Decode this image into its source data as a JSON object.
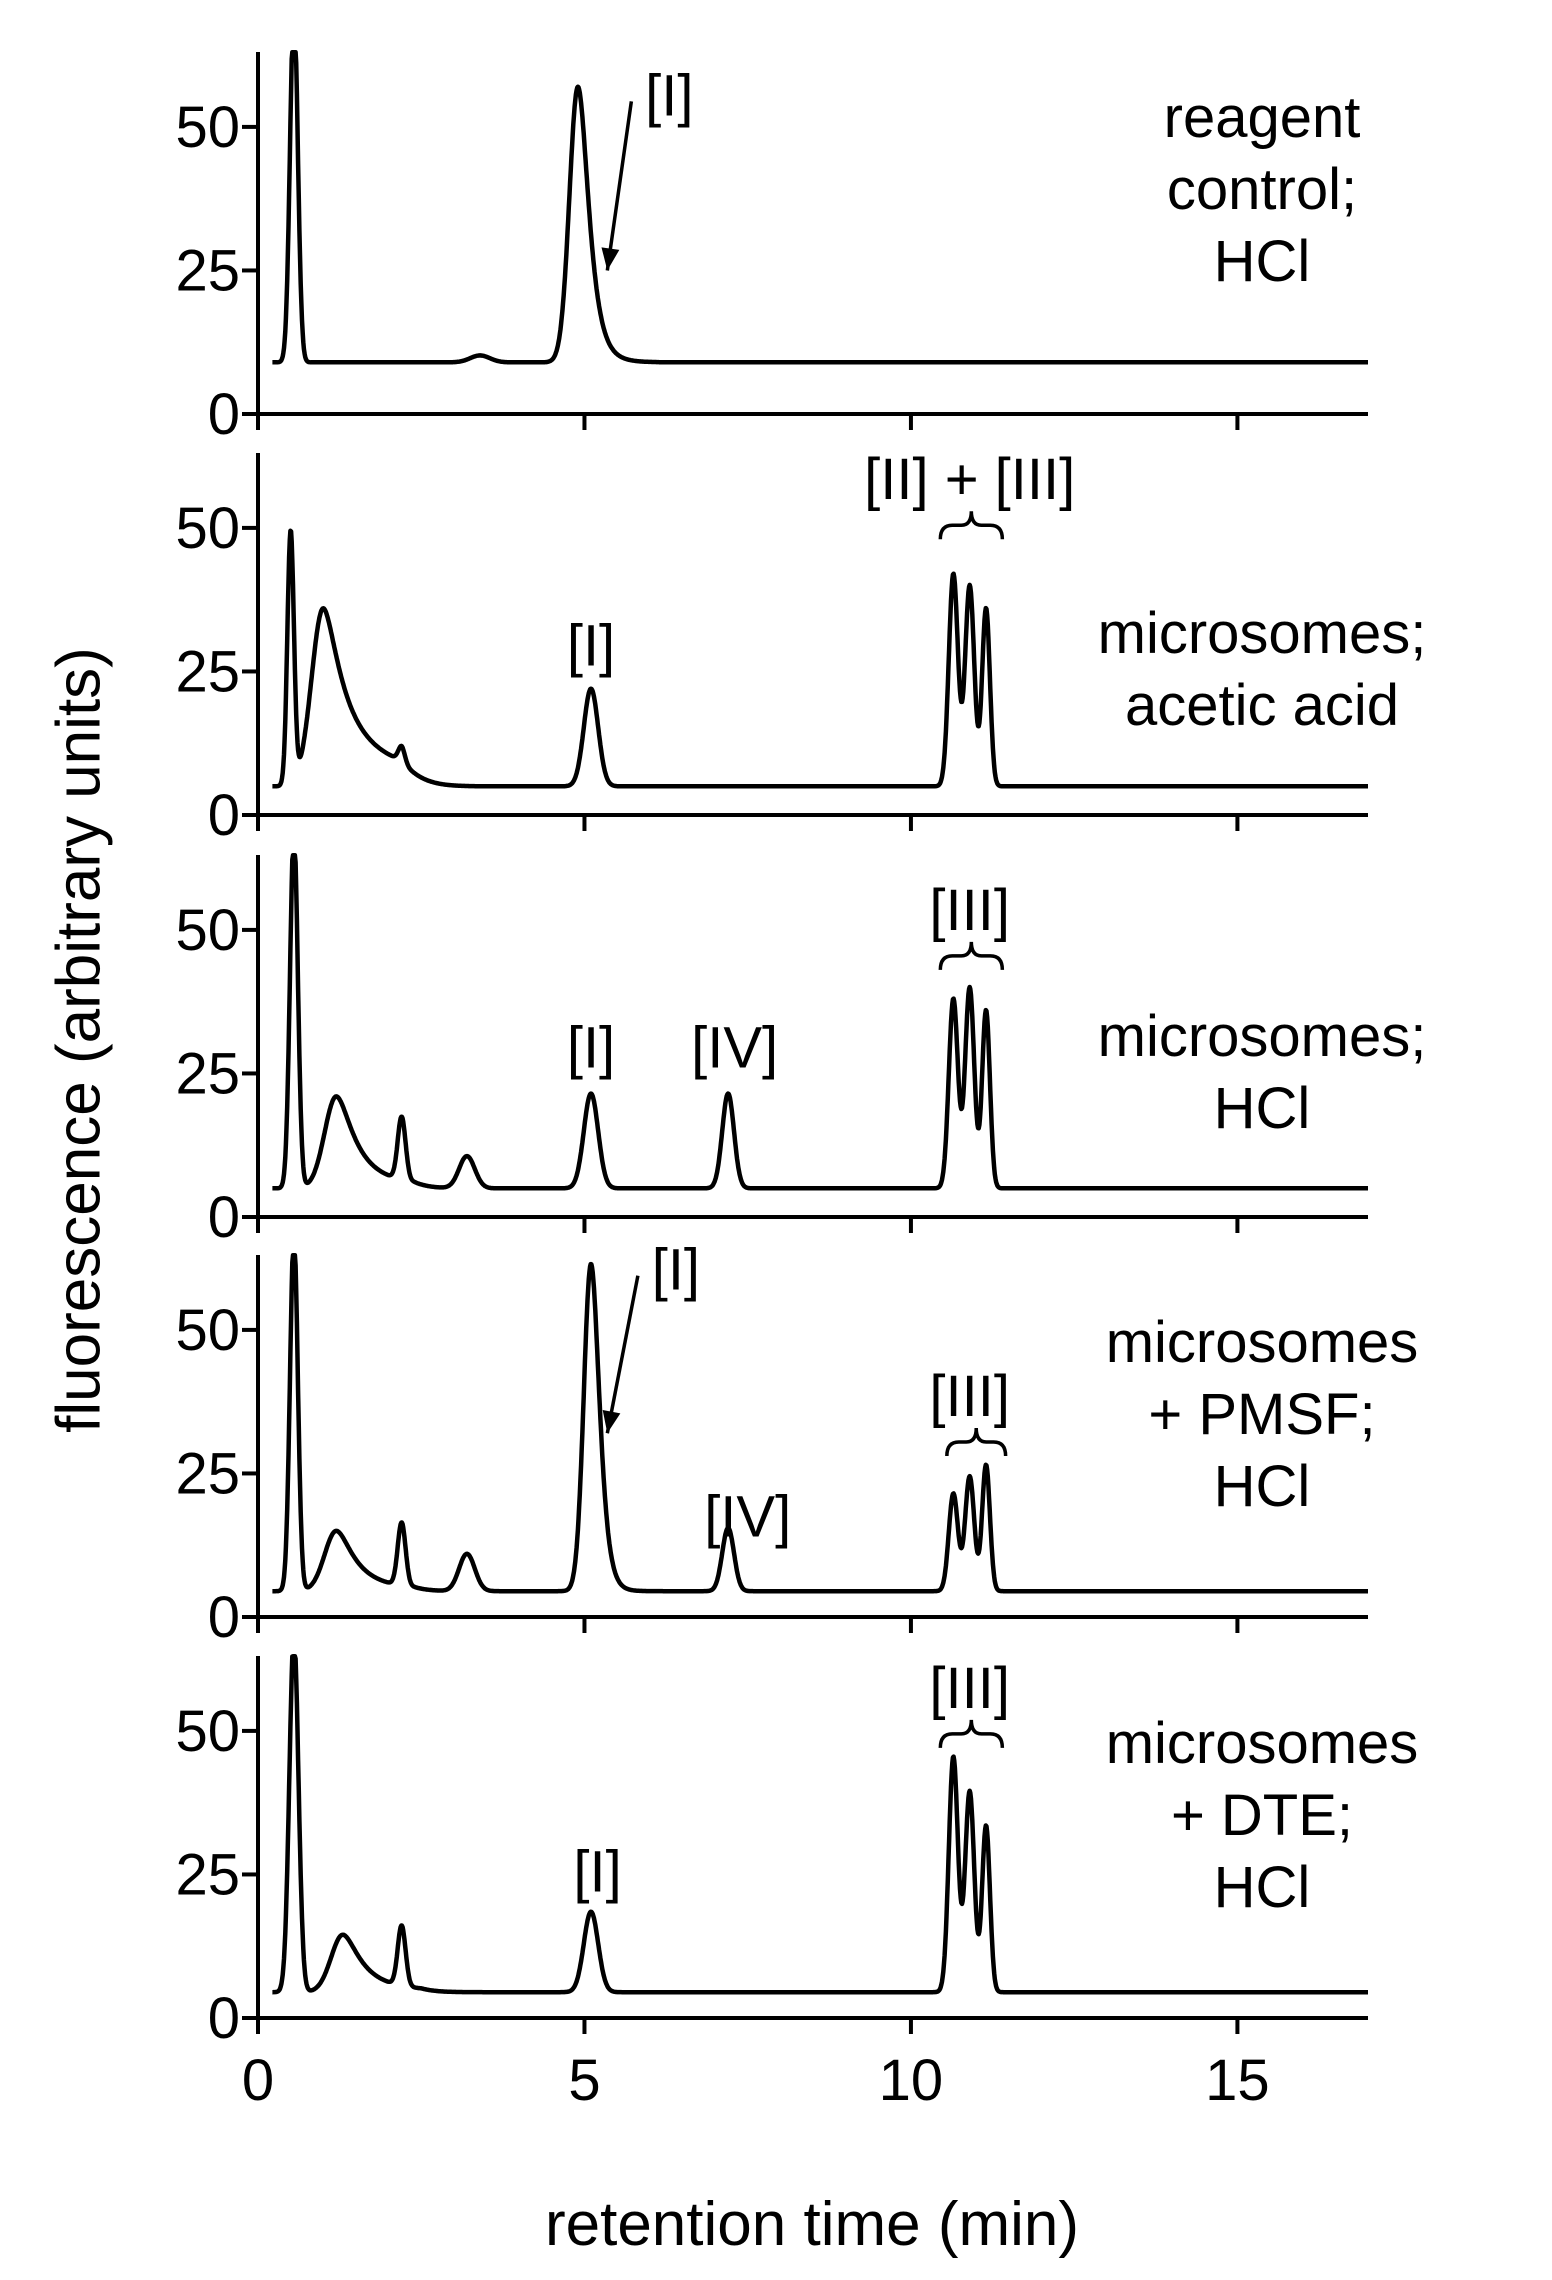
{
  "chart_data": {
    "type": "line",
    "y_axis_label": "fluorescence (arbitrary units)",
    "x_axis_label": "retention time (min)",
    "x_ticks": [
      "0",
      "5",
      "10",
      "15"
    ],
    "x_tick_values": [
      0,
      5,
      10,
      15
    ],
    "xlim": [
      0,
      17
    ],
    "y_ticks": [
      "0",
      "25",
      "50"
    ],
    "y_tick_values": [
      0,
      25,
      50
    ],
    "ylim": [
      0,
      62
    ],
    "panels": [
      {
        "id": "reagent-control-hcl",
        "condition": [
          "reagent",
          "control;",
          "HCl"
        ],
        "baseline": 9,
        "peaks": [
          {
            "rt": 0.55,
            "height": 62,
            "width": 0.06
          },
          {
            "rt": 3.4,
            "height": 1.2,
            "width": 0.15
          },
          {
            "rt": 4.9,
            "height": 48,
            "width": 0.13,
            "tail": 0.2
          }
        ],
        "labels": [
          {
            "text": "[I]",
            "rt": 6.3,
            "y": 52,
            "arrow_to": {
              "rt": 5.35,
              "y": 25
            }
          }
        ]
      },
      {
        "id": "microsomes-acetic-acid",
        "condition": [
          "microsomes;",
          "acetic acid"
        ],
        "baseline": 5,
        "peaks": [
          {
            "rt": 0.5,
            "height": 44,
            "width": 0.05
          },
          {
            "rt": 1.0,
            "height": 31,
            "width": 0.18,
            "tail": 0.45
          },
          {
            "rt": 2.2,
            "height": 2.5,
            "width": 0.05
          },
          {
            "rt": 5.1,
            "height": 17,
            "width": 0.11
          },
          {
            "rt": 10.65,
            "height": 37,
            "width": 0.07
          },
          {
            "rt": 10.9,
            "height": 35,
            "width": 0.07
          },
          {
            "rt": 11.15,
            "height": 31,
            "width": 0.06
          }
        ],
        "labels": [
          {
            "text": "[I]",
            "rt": 5.1,
            "y": 26
          },
          {
            "text": "[II] + [III]",
            "rt": 10.9,
            "y": 55,
            "brace": [
              10.45,
              11.4
            ]
          }
        ]
      },
      {
        "id": "microsomes-hcl",
        "condition": [
          "microsomes;",
          "HCl"
        ],
        "baseline": 5,
        "peaks": [
          {
            "rt": 0.55,
            "height": 62,
            "width": 0.06
          },
          {
            "rt": 1.2,
            "height": 16,
            "width": 0.18,
            "tail": 0.35
          },
          {
            "rt": 2.2,
            "height": 11,
            "width": 0.06
          },
          {
            "rt": 3.2,
            "height": 5.6,
            "width": 0.12
          },
          {
            "rt": 5.1,
            "height": 16.5,
            "width": 0.11
          },
          {
            "rt": 7.2,
            "height": 16.5,
            "width": 0.09
          },
          {
            "rt": 10.65,
            "height": 33,
            "width": 0.07
          },
          {
            "rt": 10.9,
            "height": 35,
            "width": 0.07
          },
          {
            "rt": 11.15,
            "height": 31,
            "width": 0.06
          }
        ],
        "labels": [
          {
            "text": "[I]",
            "rt": 5.1,
            "y": 26
          },
          {
            "text": "[IV]",
            "rt": 7.3,
            "y": 26
          },
          {
            "text": "[III]",
            "rt": 10.9,
            "y": 50,
            "brace": [
              10.45,
              11.4
            ]
          }
        ]
      },
      {
        "id": "microsomes-pmsf-hcl",
        "condition": [
          "microsomes",
          "+ PMSF;",
          "HCl"
        ],
        "baseline": 4.5,
        "peaks": [
          {
            "rt": 0.55,
            "height": 62,
            "width": 0.06
          },
          {
            "rt": 1.2,
            "height": 10.5,
            "width": 0.18,
            "tail": 0.35
          },
          {
            "rt": 2.2,
            "height": 11,
            "width": 0.06
          },
          {
            "rt": 3.2,
            "height": 6.5,
            "width": 0.12
          },
          {
            "rt": 5.1,
            "height": 57,
            "width": 0.11,
            "tail": 0.15
          },
          {
            "rt": 7.2,
            "height": 11,
            "width": 0.09
          },
          {
            "rt": 10.65,
            "height": 17,
            "width": 0.07
          },
          {
            "rt": 10.9,
            "height": 20,
            "width": 0.07
          },
          {
            "rt": 11.15,
            "height": 22,
            "width": 0.06
          }
        ],
        "labels": [
          {
            "text": "[I]",
            "rt": 6.4,
            "y": 57,
            "arrow_to": {
              "rt": 5.35,
              "y": 32
            }
          },
          {
            "text": "[IV]",
            "rt": 7.5,
            "y": 14
          },
          {
            "text": "[III]",
            "rt": 10.9,
            "y": 35,
            "brace": [
              10.55,
              11.45
            ]
          }
        ]
      },
      {
        "id": "microsomes-dte-hcl",
        "condition": [
          "microsomes",
          "+ DTE;",
          "HCl"
        ],
        "baseline": 4.5,
        "peaks": [
          {
            "rt": 0.55,
            "height": 62,
            "width": 0.07
          },
          {
            "rt": 1.3,
            "height": 10,
            "width": 0.18,
            "tail": 0.35
          },
          {
            "rt": 2.2,
            "height": 10.5,
            "width": 0.06
          },
          {
            "rt": 5.1,
            "height": 14,
            "width": 0.11
          },
          {
            "rt": 10.65,
            "height": 41,
            "width": 0.07
          },
          {
            "rt": 10.9,
            "height": 35,
            "width": 0.07
          },
          {
            "rt": 11.15,
            "height": 29,
            "width": 0.06
          }
        ],
        "labels": [
          {
            "text": "[I]",
            "rt": 5.2,
            "y": 22
          },
          {
            "text": "[III]",
            "rt": 10.9,
            "y": 54,
            "brace": [
              10.45,
              11.4
            ]
          }
        ]
      }
    ]
  }
}
